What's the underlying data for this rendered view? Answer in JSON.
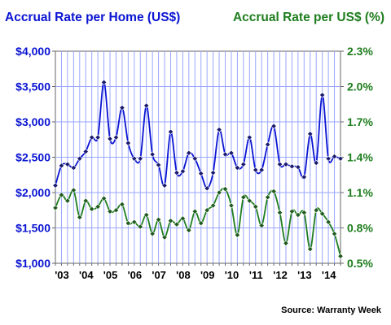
{
  "colors": {
    "home": "#0a14d2",
    "dollar": "#1e7d1e",
    "plot_bg": "#ffffff",
    "grid": "#9aa6ff",
    "frame": "#666666",
    "text": "#000000"
  },
  "source": "Source: Warranty Week",
  "chart_data": {
    "type": "line",
    "title_left": "Accrual Rate per Home (US$)",
    "title_right": "Accrual Rate per US$ (%)",
    "grid": true,
    "x_ticks": [
      {
        "label": "'03",
        "t": 2003.0
      },
      {
        "label": "'04",
        "t": 2004.0
      },
      {
        "label": "'05",
        "t": 2005.0
      },
      {
        "label": "'06",
        "t": 2006.0
      },
      {
        "label": "'07",
        "t": 2007.0
      },
      {
        "label": "'08",
        "t": 2008.0
      },
      {
        "label": "'09",
        "t": 2009.0
      },
      {
        "label": "'10",
        "t": 2010.0
      },
      {
        "label": "'11",
        "t": 2011.0
      },
      {
        "label": "'12",
        "t": 2012.0
      },
      {
        "label": "'13",
        "t": 2013.0
      },
      {
        "label": "'14",
        "t": 2014.0
      }
    ],
    "x_range": [
      2003.0,
      2014.75
    ],
    "y_left": {
      "range": [
        1000,
        4000
      ],
      "ticks": [
        1000,
        1500,
        2000,
        2500,
        3000,
        3500,
        4000
      ],
      "labels": [
        "$1,000",
        "$1,500",
        "$2,000",
        "$2,500",
        "$3,000",
        "$3,500",
        "$4,000"
      ]
    },
    "y_right": {
      "range": [
        0.5,
        2.3
      ],
      "ticks": [
        0.5,
        0.8,
        1.1,
        1.4,
        1.7,
        2.0,
        2.3
      ],
      "labels": [
        "0.5%",
        "0.8%",
        "1.1%",
        "1.4%",
        "1.7%",
        "2.0%",
        "2.3%"
      ]
    },
    "series": [
      {
        "name": "Accrual Rate per Home (US$)",
        "axis": "left",
        "color": "#0a14d2",
        "start": 2003.0,
        "step": 0.25,
        "values": [
          2100,
          2380,
          2400,
          2350,
          2480,
          2580,
          2780,
          2780,
          3560,
          2760,
          2780,
          3200,
          2700,
          2480,
          2480,
          3230,
          2540,
          2390,
          2100,
          2860,
          2280,
          2300,
          2560,
          2480,
          2270,
          2060,
          2280,
          2890,
          2540,
          2560,
          2350,
          2400,
          2780,
          2320,
          2320,
          2680,
          2940,
          2400,
          2400,
          2370,
          2360,
          2220,
          2830,
          2420,
          3380,
          2480,
          2510,
          2480
        ]
      },
      {
        "name": "Accrual Rate per US$ (%)",
        "axis": "right",
        "color": "#1e7d1e",
        "start": 2003.0,
        "step": 0.25,
        "values": [
          0.97,
          1.08,
          1.03,
          1.12,
          0.89,
          1.03,
          0.96,
          0.98,
          1.05,
          0.94,
          0.95,
          1.0,
          0.84,
          0.85,
          0.81,
          0.91,
          0.75,
          0.87,
          0.72,
          0.86,
          0.83,
          0.88,
          0.78,
          0.94,
          0.84,
          0.95,
          0.99,
          1.1,
          1.13,
          0.99,
          0.74,
          1.06,
          1.03,
          0.98,
          0.82,
          1.06,
          1.11,
          0.93,
          0.67,
          0.94,
          0.91,
          0.93,
          0.62,
          0.95,
          0.92,
          0.85,
          0.75,
          0.56
        ]
      }
    ]
  }
}
